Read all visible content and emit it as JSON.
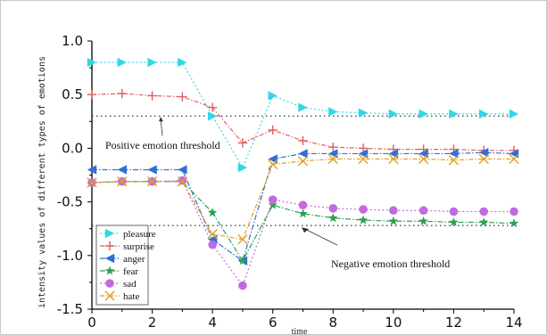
{
  "chart_data": {
    "type": "line",
    "xlabel": "time",
    "ylabel": "intensity values of different types of emotions",
    "xlim": [
      0,
      14
    ],
    "ylim": [
      -1.5,
      1.0
    ],
    "x": [
      0,
      1,
      2,
      3,
      4,
      5,
      6,
      7,
      8,
      9,
      10,
      11,
      12,
      13,
      14
    ],
    "xticks": [
      "0",
      "2",
      "4",
      "6",
      "8",
      "10",
      "12",
      "14"
    ],
    "yticks": [
      "1.0",
      "0.5",
      "0.0",
      "-0.5",
      "-1.0",
      "-1.5"
    ],
    "grid": false,
    "legend_position": "bottom-left",
    "series": [
      {
        "name": "pleasure",
        "color": "#33d6e6",
        "marker": "triangle-right",
        "values": [
          0.8,
          0.8,
          0.8,
          0.8,
          0.3,
          -0.18,
          0.49,
          0.38,
          0.34,
          0.33,
          0.32,
          0.32,
          0.32,
          0.32,
          0.32
        ]
      },
      {
        "name": "surprise",
        "color": "#e06060",
        "marker": "plus",
        "values": [
          0.5,
          0.51,
          0.49,
          0.48,
          0.38,
          0.05,
          0.17,
          0.07,
          0.01,
          0.0,
          -0.01,
          -0.01,
          -0.01,
          -0.02,
          -0.02
        ]
      },
      {
        "name": "anger",
        "color": "#2f6fd6",
        "marker": "triangle-left",
        "values": [
          -0.2,
          -0.2,
          -0.2,
          -0.2,
          -0.85,
          -1.05,
          -0.1,
          -0.05,
          -0.05,
          -0.05,
          -0.05,
          -0.05,
          -0.05,
          -0.04,
          -0.05
        ]
      },
      {
        "name": "fear",
        "color": "#2e9e55",
        "marker": "star",
        "values": [
          -0.32,
          -0.31,
          -0.31,
          -0.31,
          -0.6,
          -1.05,
          -0.53,
          -0.61,
          -0.65,
          -0.67,
          -0.68,
          -0.68,
          -0.69,
          -0.69,
          -0.7
        ]
      },
      {
        "name": "sad",
        "color": "#c06ae0",
        "marker": "circle",
        "values": [
          -0.32,
          -0.31,
          -0.31,
          -0.3,
          -0.9,
          -1.28,
          -0.48,
          -0.53,
          -0.56,
          -0.57,
          -0.58,
          -0.58,
          -0.59,
          -0.59,
          -0.59
        ]
      },
      {
        "name": "hate",
        "color": "#e0a020",
        "marker": "x",
        "values": [
          -0.32,
          -0.31,
          -0.31,
          -0.31,
          -0.8,
          -0.85,
          -0.15,
          -0.12,
          -0.1,
          -0.1,
          -0.1,
          -0.1,
          -0.11,
          -0.1,
          -0.1
        ]
      }
    ],
    "thresholds": [
      {
        "value": 0.3,
        "label": "Positive emotion threshold"
      },
      {
        "value": -0.72,
        "label": "Negative emotion threshold"
      }
    ]
  }
}
